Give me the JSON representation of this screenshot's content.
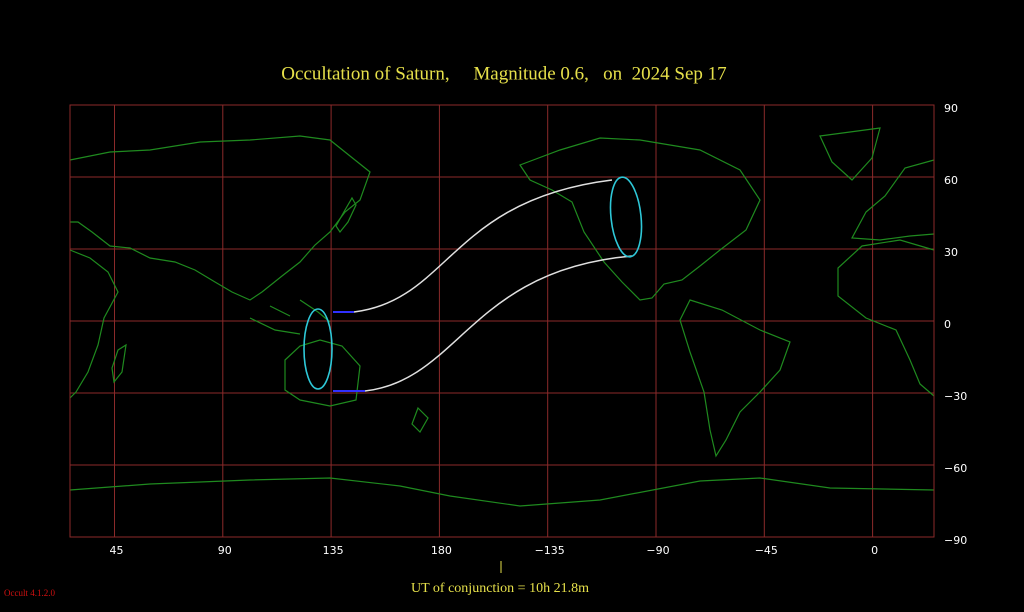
{
  "title": "Occultation of Saturn,     Magnitude 0.6,   on  2024 Sep 17",
  "x_labels": [
    "45",
    "90",
    "135",
    "180",
    "−135",
    "−90",
    "−45",
    "0"
  ],
  "y_labels": [
    "90",
    "60",
    "30",
    "0",
    "−30",
    "−60",
    "−90"
  ],
  "footer": "UT of conjunction = 10h 21.8m",
  "version": "Occult 4.1.2.0"
}
